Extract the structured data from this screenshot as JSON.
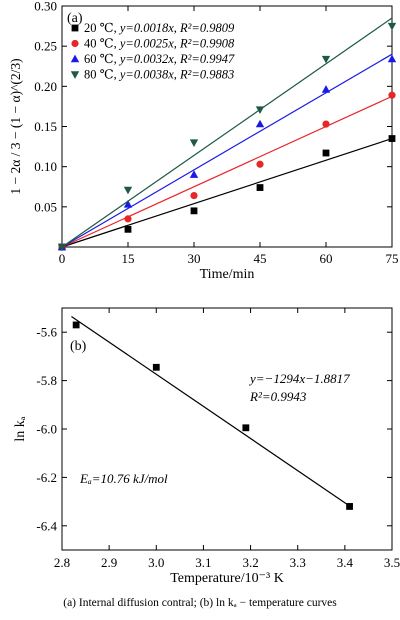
{
  "chart_data": [
    {
      "type": "scatter",
      "panel_label": "(a)",
      "xlabel": "Time/min",
      "ylabel": "1 − 2α / 3 − (1 − α)^(2/3)",
      "xlim": [
        0,
        75
      ],
      "ylim": [
        0,
        0.3
      ],
      "xticks": [
        0,
        15,
        30,
        45,
        60,
        75
      ],
      "yticks": [
        0,
        0.05,
        0.1,
        0.15,
        0.2,
        0.25,
        0.3
      ],
      "xtick_labels": [
        "0",
        "15",
        "30",
        "45",
        "60",
        "75"
      ],
      "ytick_labels": [
        "",
        "0.05",
        "0.10",
        "0.15",
        "0.20",
        "0.25",
        "0.30"
      ],
      "legend_position": "top-left",
      "series": [
        {
          "name": "20 ℃, y=0.0018x, R²=0.9809",
          "label_temp": "20 ℃",
          "label_fit": "y=0.0018x",
          "label_r2": "R²=0.9809",
          "marker": "square",
          "color": "#000000",
          "slope": 0.0018,
          "x": [
            0,
            15,
            30,
            45,
            60,
            75
          ],
          "y": [
            0,
            0.022,
            0.045,
            0.074,
            0.117,
            0.135
          ]
        },
        {
          "name": "40 ℃, y=0.0025x, R²=0.9908",
          "label_temp": "40 ℃",
          "label_fit": "y=0.0025x",
          "label_r2": "R²=0.9908",
          "marker": "circle",
          "color": "#e8262a",
          "slope": 0.0025,
          "x": [
            0,
            15,
            30,
            45,
            60,
            75
          ],
          "y": [
            0,
            0.035,
            0.064,
            0.103,
            0.153,
            0.189
          ]
        },
        {
          "name": "60 ℃, y=0.0032x, R²=0.9947",
          "label_temp": "60 ℃",
          "label_fit": "y=0.0032x",
          "label_r2": "R²=0.9947",
          "marker": "triangle-up",
          "color": "#1a1ae6",
          "slope": 0.0032,
          "x": [
            0,
            15,
            30,
            45,
            60,
            75
          ],
          "y": [
            0,
            0.053,
            0.09,
            0.153,
            0.196,
            0.234
          ]
        },
        {
          "name": "80 ℃, y=0.0038x, R²=0.9883",
          "label_temp": "80 ℃",
          "label_fit": "y=0.0038x",
          "label_r2": "R²=0.9883",
          "marker": "triangle-down",
          "color": "#1d5a46",
          "slope": 0.0038,
          "x": [
            0,
            15,
            30,
            45,
            60,
            75
          ],
          "y": [
            0,
            0.071,
            0.13,
            0.171,
            0.234,
            0.275
          ]
        }
      ]
    },
    {
      "type": "scatter",
      "panel_label": "(b)",
      "xlabel": "Temperature/10⁻³ K",
      "ylabel": "ln kₐ",
      "xlim": [
        2.8,
        3.5
      ],
      "ylim": [
        -6.5,
        -5.5
      ],
      "xticks": [
        2.8,
        2.9,
        3.0,
        3.1,
        3.2,
        3.3,
        3.4,
        3.5
      ],
      "yticks": [
        -6.4,
        -6.2,
        -6.0,
        -5.8,
        -5.6
      ],
      "xtick_labels": [
        "2.8",
        "2.9",
        "3.0",
        "3.1",
        "3.2",
        "3.3",
        "3.4",
        "3.5"
      ],
      "ytick_labels": [
        "-6.4",
        "-6.2",
        "-6.0",
        "-5.8",
        "-5.6"
      ],
      "points": {
        "x": [
          2.83,
          3.0,
          3.19,
          3.41
        ],
        "y": [
          -5.57,
          -5.745,
          -5.995,
          -6.32
        ]
      },
      "fit_line": {
        "x": [
          2.82,
          3.41
        ],
        "y": [
          -5.535,
          -6.318
        ]
      },
      "annotation_fit": "y=−1294x−1.8817",
      "annotation_r2": "R²=0.9943",
      "annotation_ea": "Eₐ=10.76 kJ/mol"
    }
  ],
  "caption": "(a)  Internal  diffusion  contral;  (b)  ln kₐ − temperature curves"
}
